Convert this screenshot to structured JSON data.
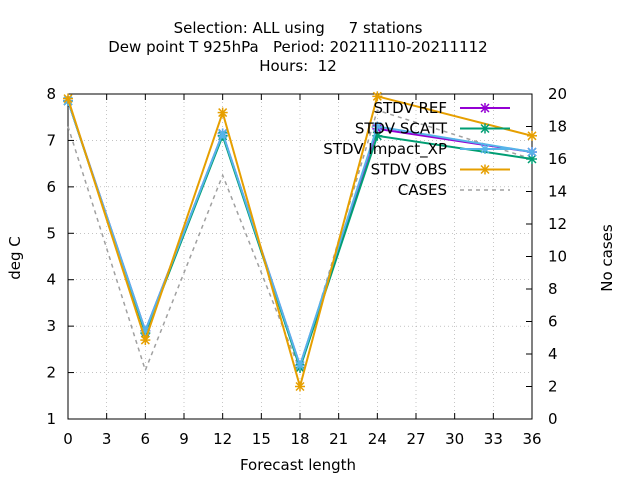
{
  "chart_data": {
    "type": "line",
    "title_lines": [
      "Selection: ALL using     7 stations",
      "Dew point T 925hPa   Period: 20211110-20211112",
      "Hours:  12"
    ],
    "xlabel": "Forecast length",
    "ylabel": "deg C",
    "y2label": "No cases",
    "xlim": [
      0,
      36
    ],
    "ylim": [
      1,
      8
    ],
    "y2lim": [
      0,
      20
    ],
    "xticks": [
      "0",
      "3",
      "6",
      "9",
      "12",
      "15",
      "18",
      "21",
      "24",
      "27",
      "30",
      "33",
      "36"
    ],
    "yticks": [
      "1",
      "2",
      "3",
      "4",
      "5",
      "6",
      "7",
      "8"
    ],
    "y2ticks": [
      "0",
      "2",
      "4",
      "6",
      "8",
      "10",
      "12",
      "14",
      "16",
      "18",
      "20"
    ],
    "grid": true,
    "legend_position": "top-right",
    "x": [
      0,
      6,
      12,
      18,
      24,
      36
    ],
    "series": [
      {
        "name": "STDV REF",
        "axis": "left",
        "color": "#9400d3",
        "marker": "x",
        "values": [
          7.85,
          2.9,
          7.15,
          2.15,
          7.25,
          6.75
        ]
      },
      {
        "name": "STDV SCATT",
        "axis": "left",
        "color": "#009e73",
        "marker": "x",
        "values": [
          7.85,
          2.85,
          7.1,
          2.1,
          7.1,
          6.6
        ]
      },
      {
        "name": "STDV Impact_XP",
        "axis": "left",
        "color": "#56b4e9",
        "marker": "x",
        "values": [
          7.85,
          2.9,
          7.15,
          2.15,
          7.3,
          6.75
        ]
      },
      {
        "name": "STDV OBS",
        "axis": "left",
        "color": "#e69f00",
        "marker": "x",
        "values": [
          7.9,
          2.7,
          7.6,
          1.7,
          7.95,
          7.1
        ]
      },
      {
        "name": "CASES",
        "axis": "right",
        "color": "#a0a0a0",
        "marker": "none",
        "dashed": true,
        "values": [
          18,
          3,
          15,
          3,
          19,
          16
        ]
      }
    ]
  }
}
